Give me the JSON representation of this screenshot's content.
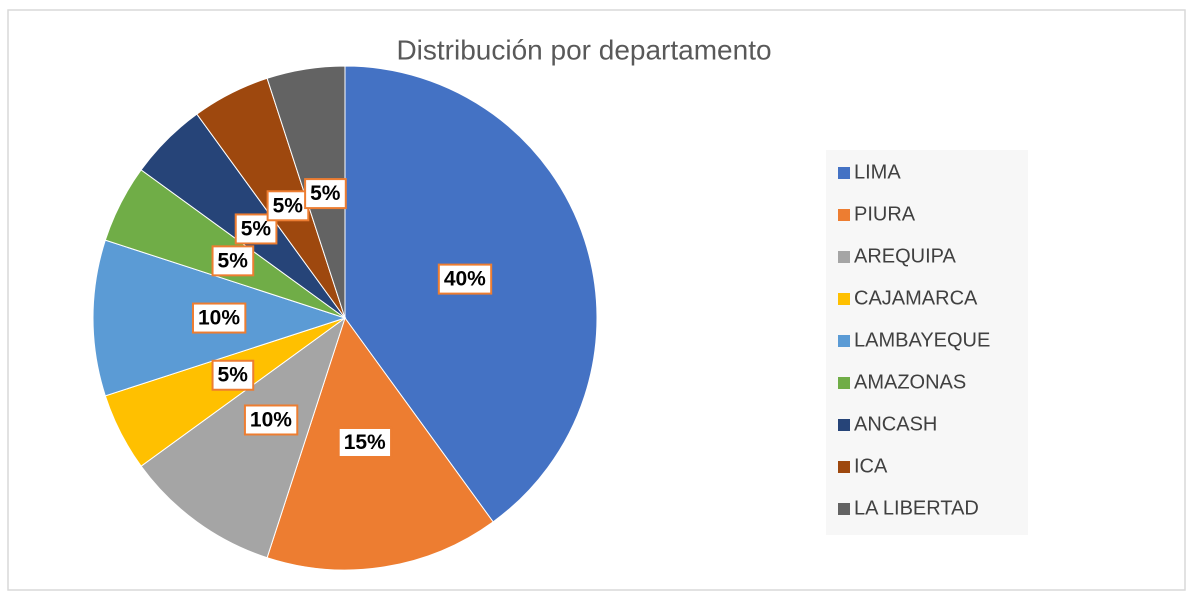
{
  "chart_data": {
    "type": "pie",
    "title": "Distribución por departamento",
    "categories": [
      "LIMA",
      "PIURA",
      "AREQUIPA",
      "CAJAMARCA",
      "LAMBAYEQUE",
      "AMAZONAS",
      "ANCASH",
      "ICA",
      "LA LIBERTAD"
    ],
    "values": [
      40,
      15,
      10,
      5,
      10,
      5,
      5,
      5,
      5
    ],
    "value_labels": [
      "40%",
      "15%",
      "10%",
      "5%",
      "10%",
      "5%",
      "5%",
      "5%",
      "5%"
    ],
    "colors": [
      "#4472c4",
      "#ed7d31",
      "#a5a5a5",
      "#ffc000",
      "#5b9bd5",
      "#70ad47",
      "#264478",
      "#9e480e",
      "#636363"
    ],
    "legend": "right"
  }
}
